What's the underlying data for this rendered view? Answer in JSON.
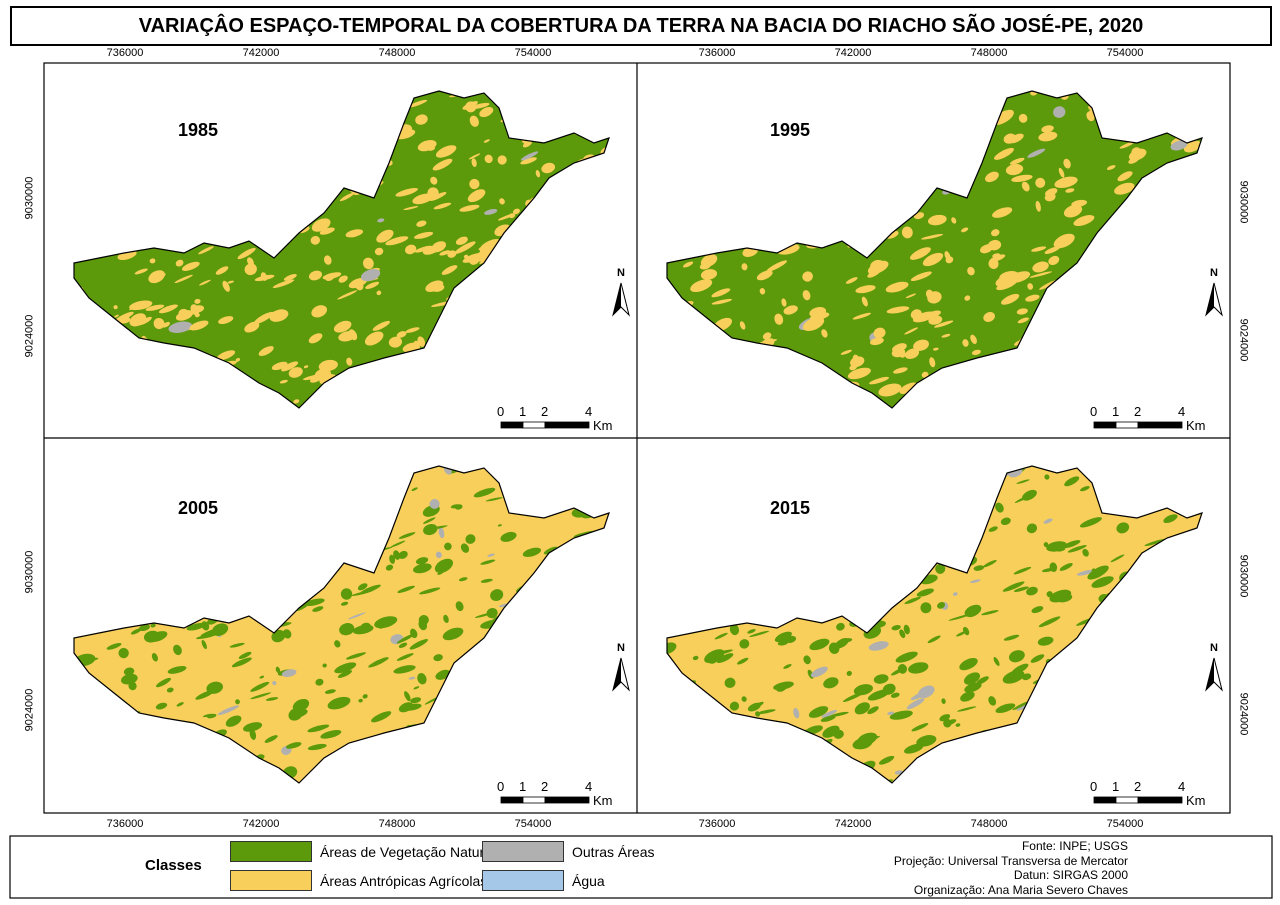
{
  "title": "VARIAÇÂO ESPAÇO-TEMPORAL DA COBERTURA DA TERRA NA BACIA DO RIACHO SÃO JOSÉ-PE, 2020",
  "panels": [
    {
      "year": "1985",
      "dominant": "green"
    },
    {
      "year": "1995",
      "dominant": "green"
    },
    {
      "year": "2005",
      "dominant": "yellow"
    },
    {
      "year": "2015",
      "dominant": "yellow"
    }
  ],
  "x_ticks": [
    "736000",
    "742000",
    "748000",
    "754000"
  ],
  "y_ticks": [
    "9030000",
    "9024000"
  ],
  "scalebar": {
    "labels": [
      "0",
      "1",
      "2",
      "4"
    ],
    "unit": "Km"
  },
  "north_label": "N",
  "legend": {
    "title": "Classes",
    "items": [
      {
        "label": "Áreas de Vegetação Natural",
        "color": "#5c9a0b"
      },
      {
        "label": "Áreas Antrópicas Agrícolas",
        "color": "#f8cf5a"
      },
      {
        "label": "Outras Áreas",
        "color": "#b0b0b0"
      },
      {
        "label": "Água",
        "color": "#a6c8e8"
      }
    ]
  },
  "credits": {
    "source": "Fonte: INPE; USGS",
    "projection": "Projeção: Universal Transversa de Mercator",
    "datum": "Datun: SIRGAS 2000",
    "organization": "Organização: Ana Maria Severo Chaves"
  },
  "colors": {
    "vegetation": "#5c9a0b",
    "agriculture": "#f8cf5a",
    "other": "#b0b0b0",
    "water": "#a6c8e8"
  }
}
